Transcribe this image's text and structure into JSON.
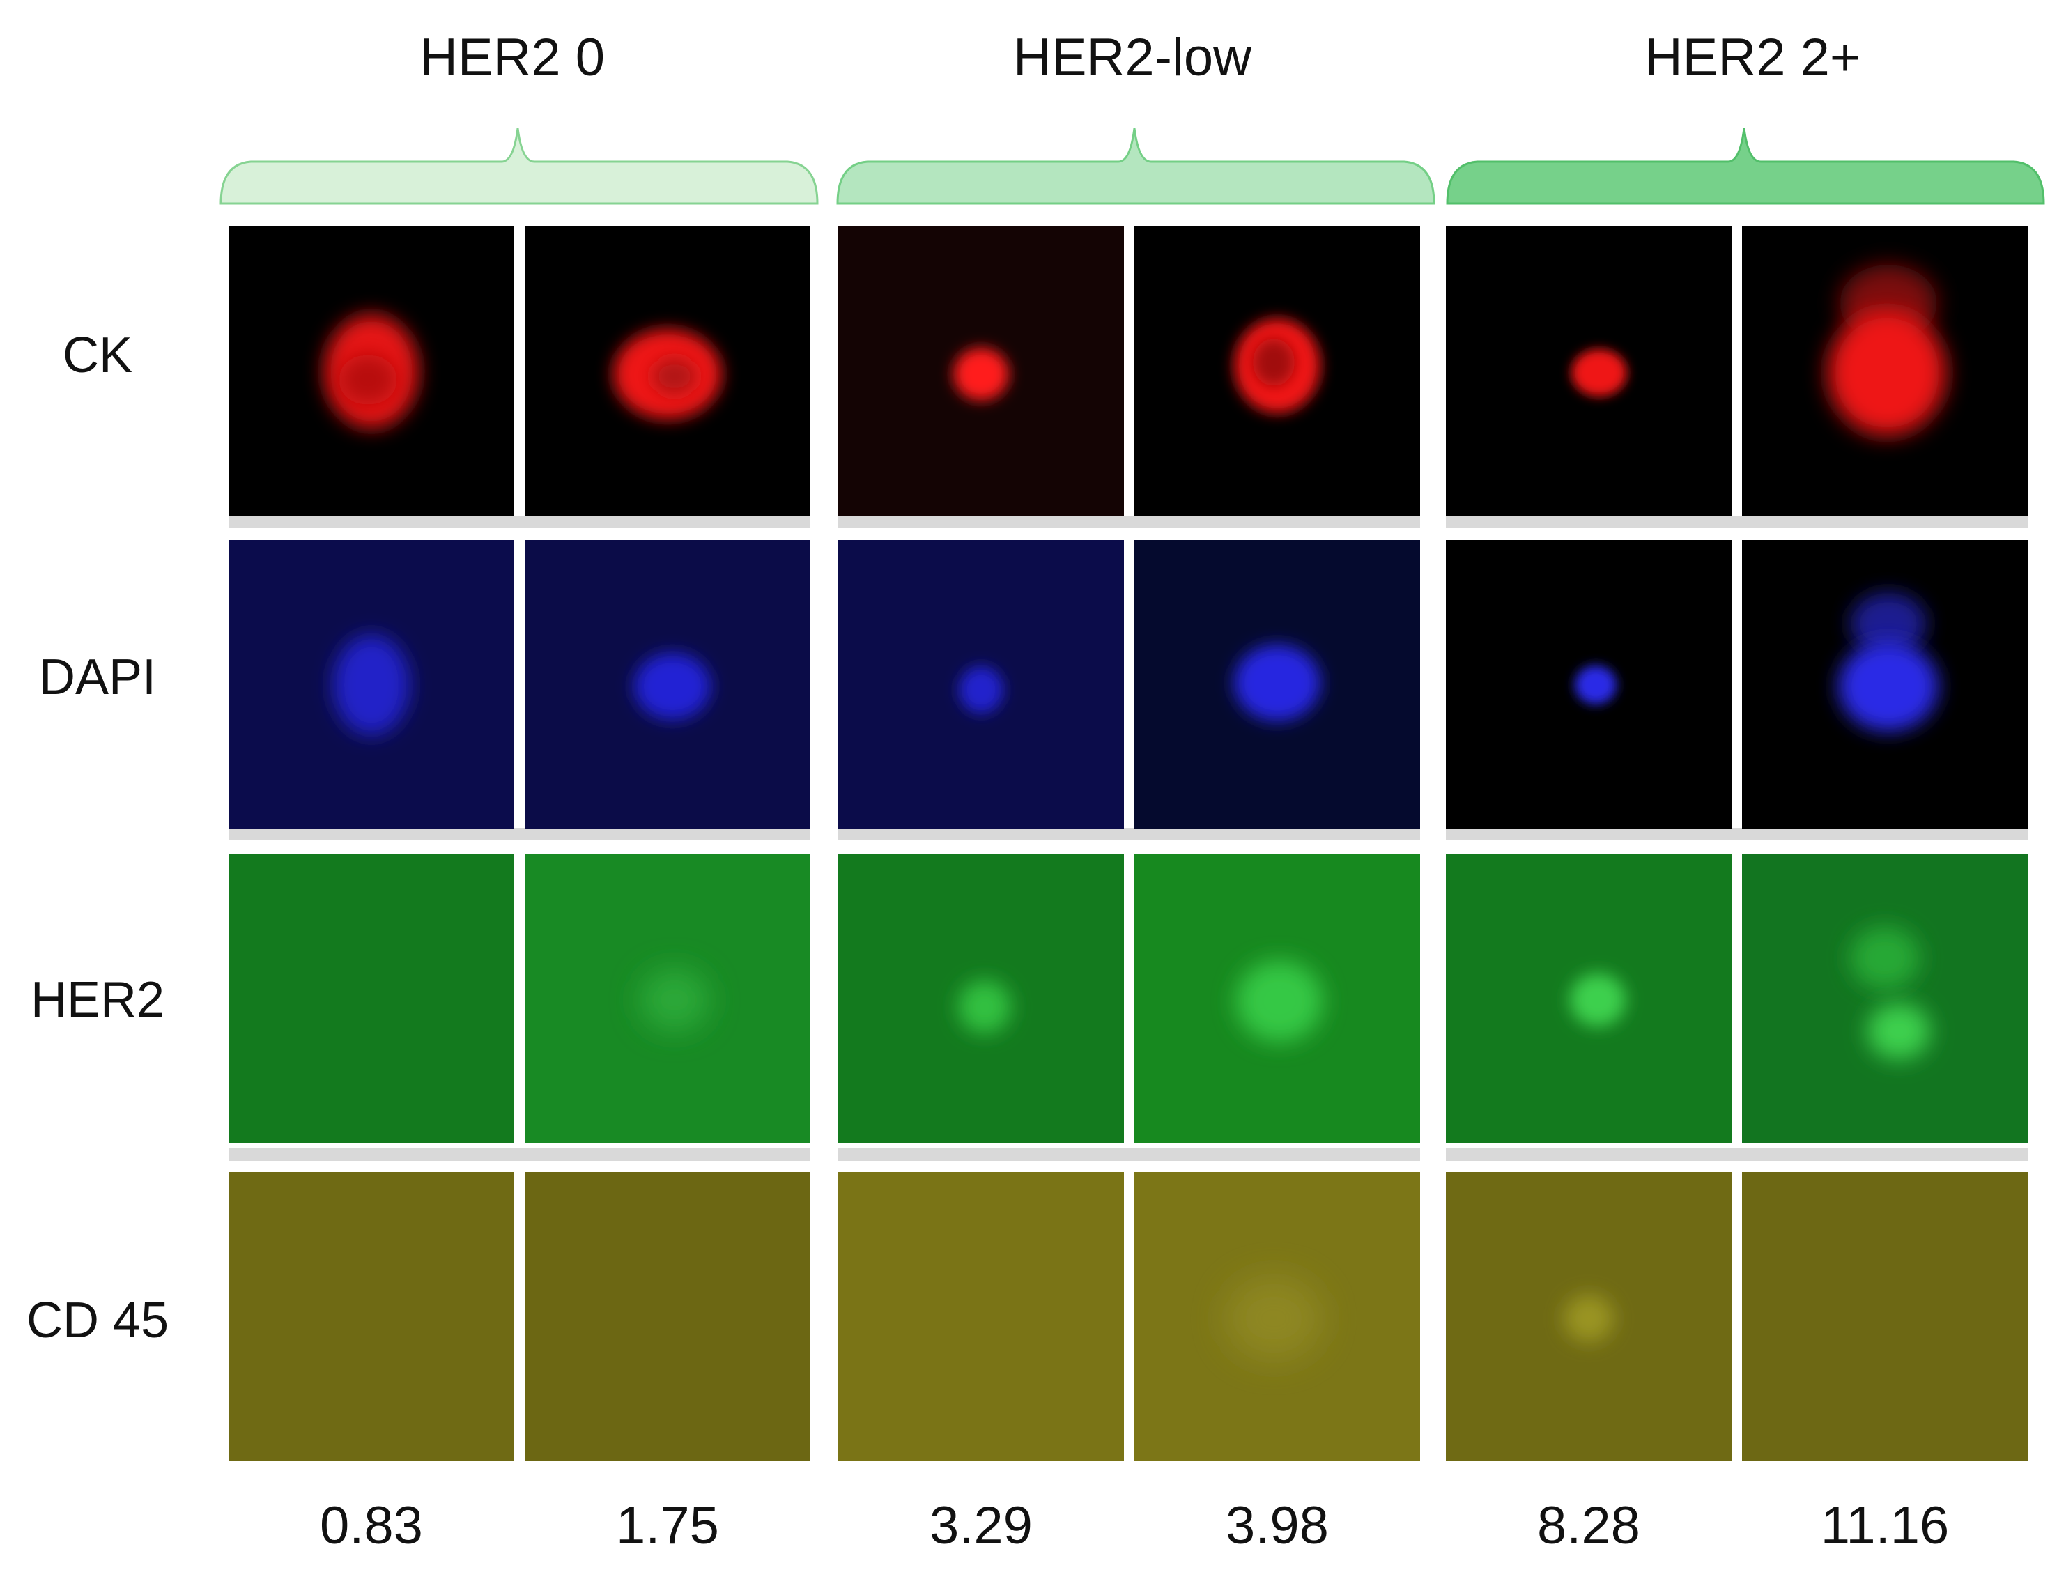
{
  "groups": [
    {
      "title": "HER2 0",
      "brace_color": "#d8f1d9",
      "brace_stroke": "#86d392"
    },
    {
      "title": "HER2-low",
      "brace_color": "#b4e6bf",
      "brace_stroke": "#74cf86"
    },
    {
      "title": "HER2 2+",
      "brace_color": "#76d18a",
      "brace_stroke": "#52bf6a"
    }
  ],
  "rows": [
    {
      "label": "CK"
    },
    {
      "label": "DAPI"
    },
    {
      "label": "HER2"
    },
    {
      "label": "CD 45"
    }
  ],
  "values": [
    "0.83",
    "1.75",
    "3.29",
    "3.98",
    "8.28",
    "11.16"
  ]
}
